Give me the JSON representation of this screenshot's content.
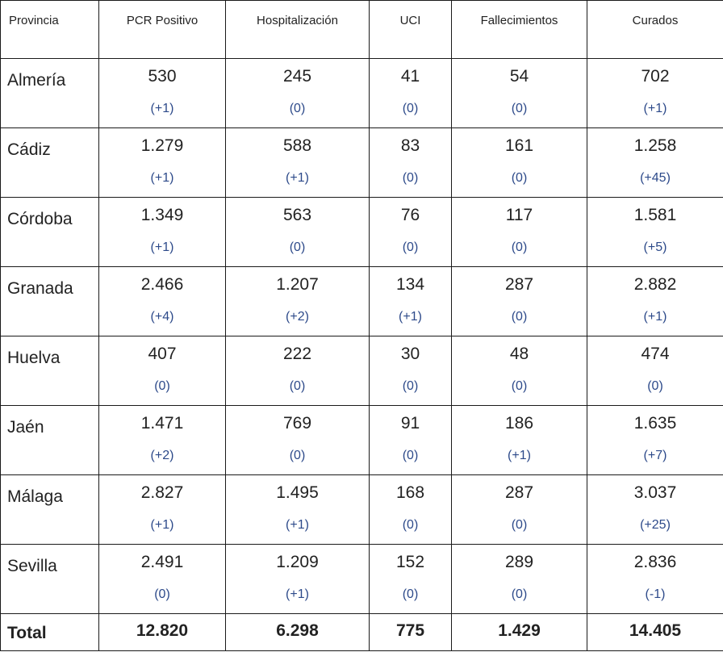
{
  "headers": [
    "Provincia",
    "PCR Positivo",
    "Hospitalización",
    "UCI",
    "Fallecimientos",
    "Curados"
  ],
  "rows": [
    {
      "name": "Almería",
      "values": [
        "530",
        "245",
        "41",
        "54",
        "702"
      ],
      "deltas": [
        "(+1)",
        "(0)",
        "(0)",
        "(0)",
        "(+1)"
      ]
    },
    {
      "name": "Cádiz",
      "values": [
        "1.279",
        "588",
        "83",
        "161",
        "1.258"
      ],
      "deltas": [
        "(+1)",
        "(+1)",
        "(0)",
        "(0)",
        "(+45)"
      ]
    },
    {
      "name": "Córdoba",
      "values": [
        "1.349",
        "563",
        "76",
        "117",
        "1.581"
      ],
      "deltas": [
        "(+1)",
        "(0)",
        "(0)",
        "(0)",
        "(+5)"
      ]
    },
    {
      "name": "Granada",
      "values": [
        "2.466",
        "1.207",
        "134",
        "287",
        "2.882"
      ],
      "deltas": [
        "(+4)",
        "(+2)",
        "(+1)",
        "(0)",
        "(+1)"
      ]
    },
    {
      "name": "Huelva",
      "values": [
        "407",
        "222",
        "30",
        "48",
        "474"
      ],
      "deltas": [
        "(0)",
        "(0)",
        "(0)",
        "(0)",
        "(0)"
      ]
    },
    {
      "name": "Jaén",
      "values": [
        "1.471",
        "769",
        "91",
        "186",
        "1.635"
      ],
      "deltas": [
        "(+2)",
        "(0)",
        "(0)",
        "(+1)",
        "(+7)"
      ]
    },
    {
      "name": "Málaga",
      "values": [
        "2.827",
        "1.495",
        "168",
        "287",
        "3.037"
      ],
      "deltas": [
        "(+1)",
        "(+1)",
        "(0)",
        "(0)",
        "(+25)"
      ]
    },
    {
      "name": "Sevilla",
      "values": [
        "2.491",
        "1.209",
        "152",
        "289",
        "2.836"
      ],
      "deltas": [
        "(0)",
        "(+1)",
        "(0)",
        "(0)",
        "(-1)"
      ]
    }
  ],
  "total": {
    "label": "Total",
    "values": [
      "12.820",
      "6.298",
      "775",
      "1.429",
      "14.405"
    ]
  }
}
